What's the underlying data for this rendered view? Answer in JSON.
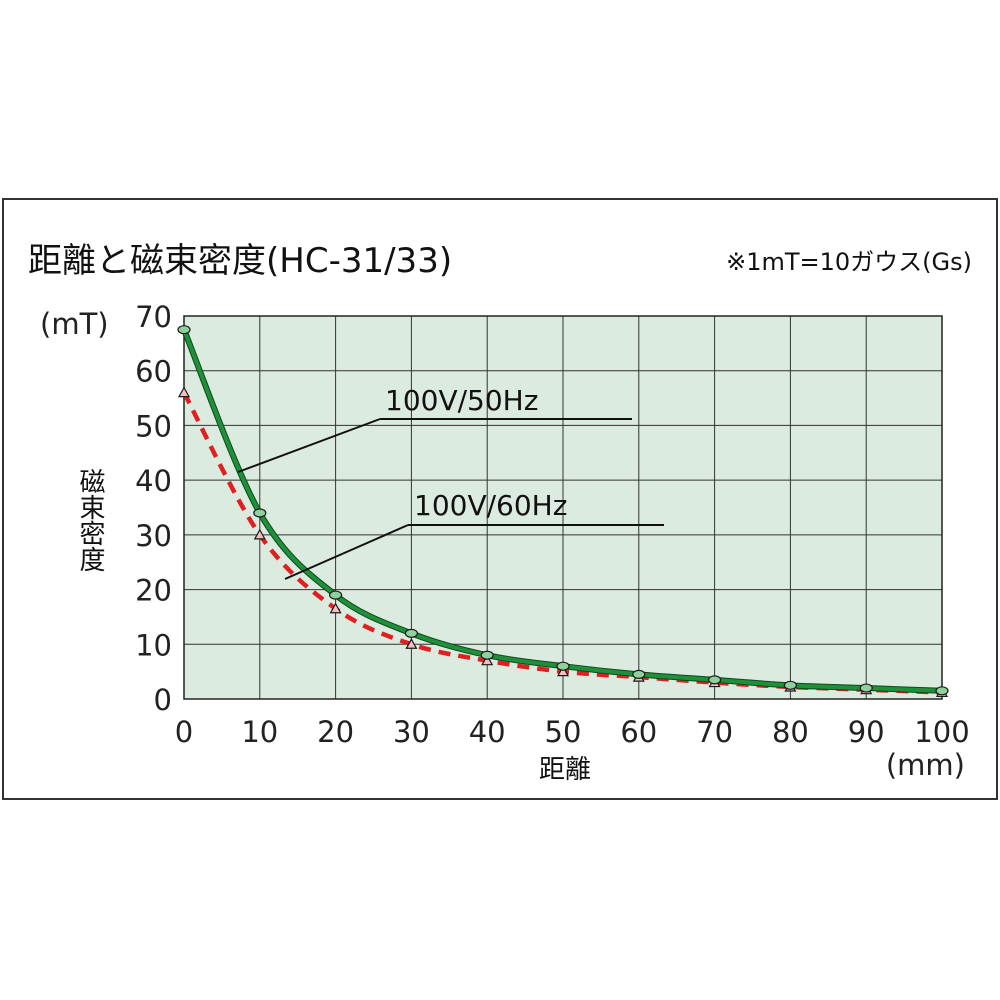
{
  "chart_data": {
    "type": "line",
    "title": "距離と磁束密度(HC-31/33)",
    "note": "※1mT=10ガウス(Gs)",
    "xlabel": "距離",
    "xunit": "(mm)",
    "ylabel": "磁束密度",
    "yunit": "(mT)",
    "xlim": [
      0,
      100
    ],
    "ylim": [
      0,
      70
    ],
    "x_ticks": [
      "0",
      "10",
      "20",
      "30",
      "40",
      "50",
      "60",
      "70",
      "80",
      "90",
      "100"
    ],
    "y_ticks": [
      "0",
      "10",
      "20",
      "30",
      "40",
      "50",
      "60",
      "70"
    ],
    "grid": true,
    "x": [
      0,
      10,
      20,
      30,
      40,
      50,
      60,
      70,
      80,
      90,
      100
    ],
    "series": [
      {
        "name": "100V/50Hz",
        "values": [
          67.5,
          34,
          19,
          12,
          8,
          6,
          4.5,
          3.5,
          2.5,
          2,
          1.5
        ],
        "color": "#1f8f3a",
        "style": "solid",
        "marker": "circle"
      },
      {
        "name": "100V/60Hz",
        "values": [
          56,
          30,
          16.5,
          10,
          7,
          5,
          4,
          3,
          2.2,
          1.7,
          1.2
        ],
        "color": "#e02020",
        "style": "dashed",
        "marker": "triangle"
      }
    ],
    "plot_bg": "#dcebe0"
  }
}
